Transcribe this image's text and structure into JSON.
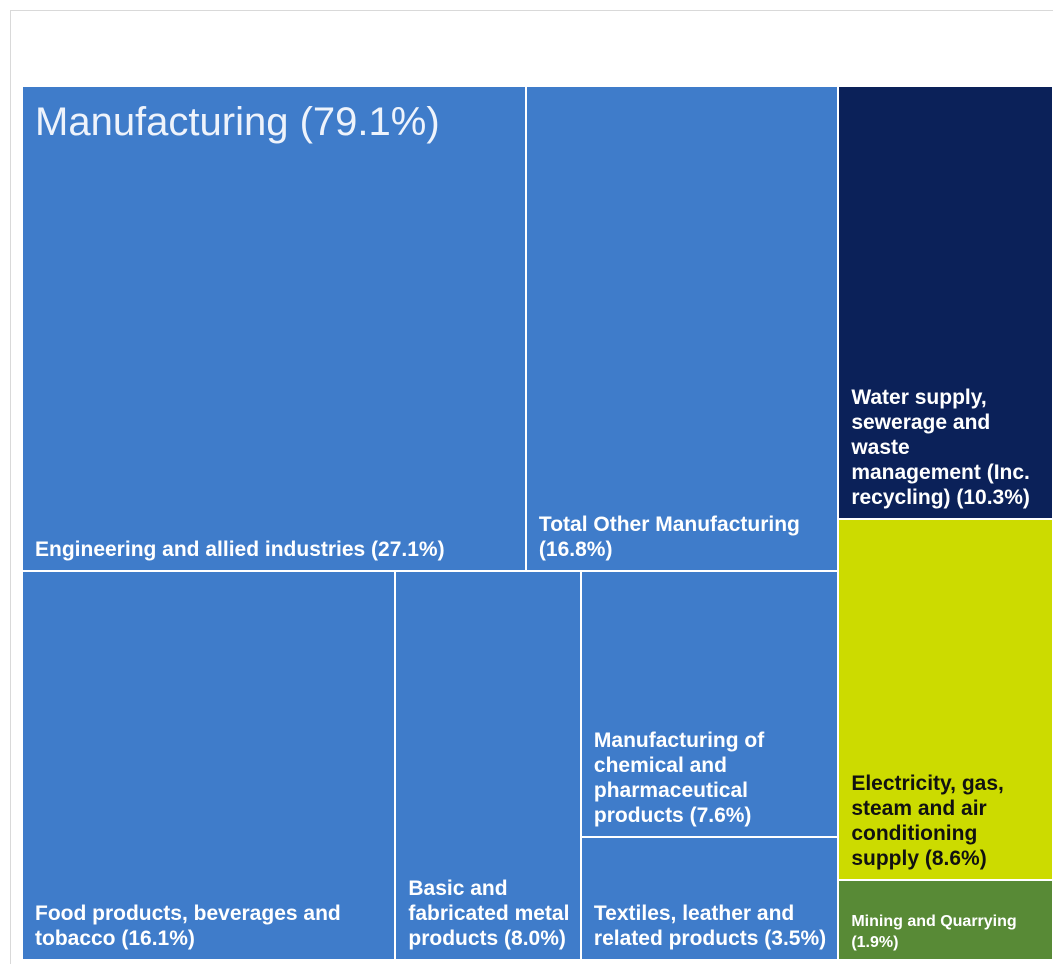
{
  "chart_data": {
    "type": "treemap",
    "groups": [
      {
        "label": "Manufacturing (79.1%)",
        "value": 79.1,
        "color": "#3f7cca",
        "label_color": "#ffffff",
        "children": [
          {
            "label": "Engineering and allied industries (27.1%)",
            "value": 27.1
          },
          {
            "label": "Total Other Manufacturing (16.8%)",
            "value": 16.8
          },
          {
            "label": "Food products, beverages and tobacco (16.1%)",
            "value": 16.1
          },
          {
            "label": "Basic and fabricated metal products (8.0%)",
            "value": 8.0
          },
          {
            "label": "Manufacturing of chemical and pharmaceutical products (7.6%)",
            "value": 7.6
          },
          {
            "label": "Textiles, leather and related products (3.5%)",
            "value": 3.5
          }
        ]
      },
      {
        "label": "Water supply, sewerage and waste management (Inc. recycling) (10.3%)",
        "value": 10.3,
        "color": "#0b2159",
        "label_color": "#ffffff"
      },
      {
        "label": "Electricity, gas, steam and air conditioning supply (8.6%)",
        "value": 8.6,
        "color": "#ccdb00",
        "label_color": "#111111"
      },
      {
        "label": "Mining and Quarrying (1.9%)",
        "value": 1.9,
        "color": "#588a36",
        "label_color": "#ffffff"
      }
    ]
  }
}
